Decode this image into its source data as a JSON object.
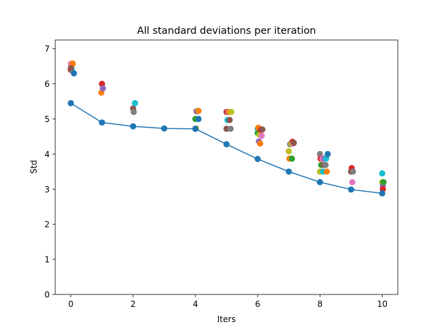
{
  "chart_data": {
    "type": "scatter",
    "title": "All standard deviations per iteration",
    "xlabel": "Iters",
    "ylabel": "Std",
    "xlim": [
      -0.5,
      10.5
    ],
    "ylim": [
      0,
      7.25
    ],
    "xticks": [
      "0",
      "2",
      "4",
      "6",
      "8",
      "10"
    ],
    "yticks": [
      "0",
      "1",
      "2",
      "3",
      "4",
      "5",
      "6",
      "7"
    ],
    "grid": false,
    "legend": "none",
    "colors": [
      "#1f77b4",
      "#ff7f0e",
      "#2ca02c",
      "#d62728",
      "#9467bd",
      "#8c564b",
      "#e377c2",
      "#7f7f7f",
      "#bcbd22",
      "#17becf"
    ],
    "line_series": {
      "color": "#1f77b4",
      "x": [
        0,
        1,
        2,
        3,
        4,
        5,
        6,
        7,
        8,
        9,
        10
      ],
      "y": [
        5.45,
        4.9,
        4.79,
        4.73,
        4.72,
        4.28,
        3.86,
        3.5,
        3.2,
        2.99,
        2.88
      ]
    },
    "scatter_points": [
      {
        "x": 0.0,
        "y": 6.4,
        "color": "#d62728"
      },
      {
        "x": 0.0,
        "y": 6.57,
        "color": "#e377c2"
      },
      {
        "x": 0.03,
        "y": 6.42,
        "color": "#17becf"
      },
      {
        "x": 0.06,
        "y": 6.56,
        "color": "#bcbd22"
      },
      {
        "x": 0.06,
        "y": 6.58,
        "color": "#ff7f0e"
      },
      {
        "x": 0.1,
        "y": 6.3,
        "color": "#1f77b4"
      },
      {
        "x": 0.0,
        "y": 6.45,
        "color": "#8c564b"
      },
      {
        "x": 0.98,
        "y": 5.75,
        "color": "#ff7f0e"
      },
      {
        "x": 1.0,
        "y": 6.0,
        "color": "#d62728"
      },
      {
        "x": 1.03,
        "y": 5.87,
        "color": "#9467bd"
      },
      {
        "x": 2.0,
        "y": 5.3,
        "color": "#8c564b"
      },
      {
        "x": 2.02,
        "y": 5.2,
        "color": "#7f7f7f"
      },
      {
        "x": 2.06,
        "y": 5.45,
        "color": "#17becf"
      },
      {
        "x": 4.0,
        "y": 5.0,
        "color": "#2ca02c"
      },
      {
        "x": 4.0,
        "y": 4.72,
        "color": "#8c564b"
      },
      {
        "x": 4.02,
        "y": 4.73,
        "color": "#bcbd22"
      },
      {
        "x": 4.04,
        "y": 5.22,
        "color": "#d62728"
      },
      {
        "x": 4.06,
        "y": 5.22,
        "color": "#9467bd"
      },
      {
        "x": 4.08,
        "y": 5.23,
        "color": "#17becf"
      },
      {
        "x": 4.1,
        "y": 5.23,
        "color": "#ff7f0e"
      },
      {
        "x": 4.1,
        "y": 5.0,
        "color": "#1f77b4"
      },
      {
        "x": 5.0,
        "y": 4.72,
        "color": "#8c564b"
      },
      {
        "x": 5.0,
        "y": 5.2,
        "color": "#d62728"
      },
      {
        "x": 5.03,
        "y": 4.97,
        "color": "#17becf"
      },
      {
        "x": 5.05,
        "y": 5.2,
        "color": "#9467bd"
      },
      {
        "x": 5.08,
        "y": 5.2,
        "color": "#ff7f0e"
      },
      {
        "x": 5.1,
        "y": 4.97,
        "color": "#8c564b"
      },
      {
        "x": 5.13,
        "y": 4.72,
        "color": "#7f7f7f"
      },
      {
        "x": 5.15,
        "y": 5.2,
        "color": "#bcbd22"
      },
      {
        "x": 6.0,
        "y": 4.72,
        "color": "#17becf"
      },
      {
        "x": 6.0,
        "y": 4.6,
        "color": "#2ca02c"
      },
      {
        "x": 6.02,
        "y": 4.75,
        "color": "#ff7f0e"
      },
      {
        "x": 6.04,
        "y": 4.36,
        "color": "#9467bd"
      },
      {
        "x": 6.06,
        "y": 4.55,
        "color": "#bcbd22"
      },
      {
        "x": 6.08,
        "y": 4.3,
        "color": "#ff7f0e"
      },
      {
        "x": 6.1,
        "y": 4.69,
        "color": "#d62728"
      },
      {
        "x": 6.13,
        "y": 4.52,
        "color": "#e377c2"
      },
      {
        "x": 6.15,
        "y": 4.7,
        "color": "#8c564b"
      },
      {
        "x": 7.0,
        "y": 4.08,
        "color": "#bcbd22"
      },
      {
        "x": 7.02,
        "y": 3.87,
        "color": "#ff7f0e"
      },
      {
        "x": 7.04,
        "y": 4.28,
        "color": "#7f7f7f"
      },
      {
        "x": 7.08,
        "y": 4.3,
        "color": "#bcbd22"
      },
      {
        "x": 7.1,
        "y": 3.87,
        "color": "#2ca02c"
      },
      {
        "x": 7.12,
        "y": 4.35,
        "color": "#d62728"
      },
      {
        "x": 7.14,
        "y": 4.3,
        "color": "#e377c2"
      },
      {
        "x": 7.16,
        "y": 4.32,
        "color": "#8c564b"
      },
      {
        "x": 8.0,
        "y": 4.0,
        "color": "#7f7f7f"
      },
      {
        "x": 8.0,
        "y": 3.5,
        "color": "#bcbd22"
      },
      {
        "x": 8.02,
        "y": 3.87,
        "color": "#d62728"
      },
      {
        "x": 8.04,
        "y": 3.69,
        "color": "#2ca02c"
      },
      {
        "x": 8.08,
        "y": 3.87,
        "color": "#e377c2"
      },
      {
        "x": 8.1,
        "y": 3.5,
        "color": "#17becf"
      },
      {
        "x": 8.12,
        "y": 3.69,
        "color": "#8c564b"
      },
      {
        "x": 8.14,
        "y": 3.87,
        "color": "#9467bd"
      },
      {
        "x": 8.18,
        "y": 3.69,
        "color": "#7f7f7f"
      },
      {
        "x": 8.2,
        "y": 3.87,
        "color": "#17becf"
      },
      {
        "x": 8.22,
        "y": 3.5,
        "color": "#ff7f0e"
      },
      {
        "x": 8.25,
        "y": 4.0,
        "color": "#1f77b4"
      },
      {
        "x": 9.0,
        "y": 3.5,
        "color": "#8c564b"
      },
      {
        "x": 9.02,
        "y": 3.6,
        "color": "#d62728"
      },
      {
        "x": 9.04,
        "y": 3.2,
        "color": "#e377c2"
      },
      {
        "x": 9.06,
        "y": 3.5,
        "color": "#7f7f7f"
      },
      {
        "x": 10.0,
        "y": 3.2,
        "color": "#bcbd22"
      },
      {
        "x": 10.0,
        "y": 3.45,
        "color": "#17becf"
      },
      {
        "x": 10.02,
        "y": 3.1,
        "color": "#9467bd"
      },
      {
        "x": 10.02,
        "y": 3.0,
        "color": "#d62728"
      },
      {
        "x": 10.04,
        "y": 3.2,
        "color": "#2ca02c"
      }
    ]
  }
}
